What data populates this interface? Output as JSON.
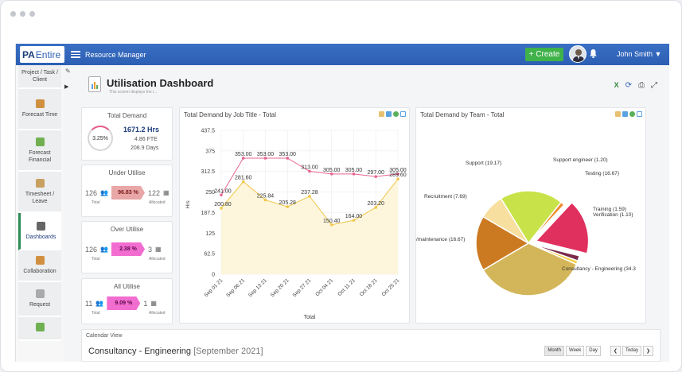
{
  "app": {
    "logo_text": "PA",
    "logo_sub": "Entire",
    "title": "Resource Manager",
    "create_label": "+ Create",
    "user_name": "John Smith ▼"
  },
  "sidebar": {
    "items": [
      {
        "label": "Project / Task / Client",
        "icon": "project-icon"
      },
      {
        "label": "Forecast Time",
        "icon": "forecast-time-icon"
      },
      {
        "label": "Forecast Financial",
        "icon": "forecast-financial-icon"
      },
      {
        "label": "Timesheet / Leave",
        "icon": "timesheet-icon"
      },
      {
        "label": "Dashboards",
        "icon": "dashboards-icon",
        "active": true
      },
      {
        "label": "Collaboration",
        "icon": "collaboration-icon"
      },
      {
        "label": "Request",
        "icon": "request-icon"
      },
      {
        "label": "",
        "icon": "more-icon"
      }
    ]
  },
  "page": {
    "title": "Utilisation Dashboard",
    "subtitle": "This screen displays the i..."
  },
  "total_demand": {
    "title": "Total Demand",
    "percent": "3.25%",
    "hours": "1671.2 Hrs",
    "fte": "4.86 FTE",
    "days": "208.9 Days"
  },
  "under_utilise": {
    "title": "Under Utilise",
    "total": "126",
    "pct": "96.83 %",
    "allocated": "122",
    "total_cap": "Total",
    "alloc_cap": "Allocated",
    "color": "#e8a6a6"
  },
  "over_utilise": {
    "title": "Over Utilise",
    "total": "126",
    "pct": "2.38 %",
    "allocated": "3",
    "total_cap": "Total",
    "alloc_cap": "Allocated",
    "color": "#f26dd0"
  },
  "all_utilise": {
    "title": "All Utilise",
    "total": "11",
    "pct": "9.09 %",
    "allocated": "1",
    "total_cap": "Total",
    "alloc_cap": "Allocated",
    "color": "#f26dd0"
  },
  "chart_data": [
    {
      "type": "line",
      "title": "Total Demand by Job Title - Total",
      "xlabel": "Total",
      "ylabel": "Hrs",
      "ylim": [
        0,
        437.5
      ],
      "yticks": [
        0,
        62.5,
        125,
        187.5,
        250,
        312.5,
        375,
        437.5
      ],
      "categories": [
        "Sep 01 21",
        "Sep 06 21",
        "Sep 13 21",
        "Sep 20 21",
        "Sep 27 21",
        "Oct 04 21",
        "Oct 11 21",
        "Oct 18 21",
        "Oct 25 21"
      ],
      "series": [
        {
          "values": [
            241.0,
            353.0,
            353.0,
            353.0,
            313.0,
            305.0,
            305.0,
            297.0,
            305.0
          ],
          "color": "#e8668f",
          "labels": [
            "241.00",
            "353.00",
            "353.00",
            "353.00",
            "313.00",
            "305.00",
            "305.00",
            "297.00",
            "305.00"
          ]
        },
        {
          "values": [
            200.8,
            281.6,
            225.84,
            205.28,
            237.28,
            150.4,
            164.0,
            203.2,
            289.6
          ],
          "color": "#f0c64a",
          "labels": [
            "200.80",
            "281.60",
            "225.84",
            "205.28",
            "237.28",
            "150.40",
            "164.00",
            "203.20",
            "289.60"
          ]
        }
      ]
    },
    {
      "type": "pie",
      "title": "Total Demand by Team - Total",
      "slices": [
        {
          "label": "Support (19.17)",
          "value": 19.17,
          "color": "#c8e34a"
        },
        {
          "label": "Support engineer (1.20)",
          "value": 1.2,
          "color": "#f08a2a"
        },
        {
          "label": "Testing (16.67)",
          "value": 16.67,
          "color": "#e0305e"
        },
        {
          "label": "Training (1.59)",
          "value": 1.59,
          "color": "#7a2a4a"
        },
        {
          "label": "Verification (1.10)",
          "value": 1.1,
          "color": "#f2d24a"
        },
        {
          "label": "Consultancy - Engineering (34.3",
          "value": 34.38,
          "color": "#d4b65a"
        },
        {
          "label": "/maintenance (16.67)",
          "value": 16.67,
          "color": "#cc7a22"
        },
        {
          "label": "Recruitment (7.69)",
          "value": 7.69,
          "color": "#f7dfa0"
        }
      ]
    }
  ],
  "calendar": {
    "header": "Calendar View",
    "team": "Consultancy - Engineering",
    "period": "[September 2021]",
    "views": [
      "Month",
      "Week",
      "Day"
    ],
    "prev": "❮",
    "today": "Today",
    "next": "❯"
  }
}
